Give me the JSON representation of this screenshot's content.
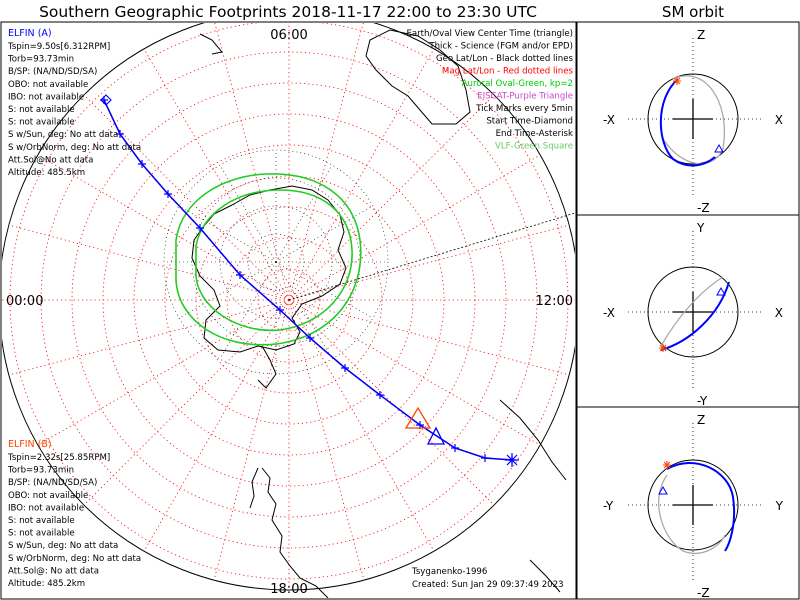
{
  "title": "Southern Geographic Footprints 2018-11-17 22:00 to 23:30 UTC",
  "side_title": "SM orbit",
  "map": {
    "time_labels": {
      "top": "06:00",
      "left": "00:00",
      "right": "12:00",
      "bottom": "18:00"
    },
    "legend": [
      {
        "text": "Earth/Oval View Center Time (triangle)",
        "color": "#000000"
      },
      {
        "text": "Thick - Science (FGM and/or EPD)",
        "color": "#000000"
      },
      {
        "text": "Geo Lat/Lon - Black dotted lines",
        "color": "#000000"
      },
      {
        "text": "Mag Lat/Lon - Red dotted lines",
        "color": "#ff0000"
      },
      {
        "text": "Auroral Oval-Green, kp=2",
        "color": "#00cc00"
      },
      {
        "text": "EISCAT-Purple Triangle",
        "color": "#cc44cc"
      },
      {
        "text": "Tick Marks every 5min",
        "color": "#000000"
      },
      {
        "text": "Start Time-Diamond",
        "color": "#000000"
      },
      {
        "text": "End Time-Asterisk",
        "color": "#000000"
      },
      {
        "text": "VLF-Green Square",
        "color": "#66cc66"
      }
    ],
    "info_a": {
      "name": "ELFIN (A)",
      "color": "#0000ff",
      "lines": [
        "Tspin=9.50s[6.312RPM]",
        "Torb=93.73min",
        "B/SP: (NA/ND/SD/SA)",
        "OBO: not available",
        "IBO: not available",
        "S: not available",
        "S: not available",
        "S w/Sun, deg: No att data",
        "S w/OrbNorm, deg: No att data",
        "Att.Sol@No att data",
        "Altitude: 485.5km"
      ]
    },
    "info_b": {
      "name": "ELFIN (B)",
      "color": "#ff4400",
      "lines": [
        "Tspin=2.32s[25.85RPM]",
        "Torb=93.73min",
        "B/SP: (NA/ND/SD/SA)",
        "OBO: not available",
        "IBO: not available",
        "S: not available",
        "S: not available",
        "S w/Sun, deg: No att data",
        "S w/OrbNorm, deg: No att data",
        "Att.Sol@: No att data",
        "Altitude: 485.2km"
      ]
    },
    "credit": "Tsyganenko-1996",
    "created": "Created: Sun Jan 29 09:37:49 2023"
  },
  "orbit_panels": [
    {
      "top": "Z",
      "bottom": "-Z",
      "left": "-X",
      "right": "X"
    },
    {
      "top": "Y",
      "bottom": "-Y",
      "left": "-X",
      "right": "X"
    },
    {
      "top": "Z",
      "bottom": "-Z",
      "left": "-Y",
      "right": "Y"
    }
  ],
  "colors": {
    "elfin_a": "#0000ff",
    "elfin_b": "#ff4400",
    "mag_grid": "#ff0000",
    "geo_grid": "#000000",
    "oval": "#22cc22",
    "coast": "#000000"
  }
}
